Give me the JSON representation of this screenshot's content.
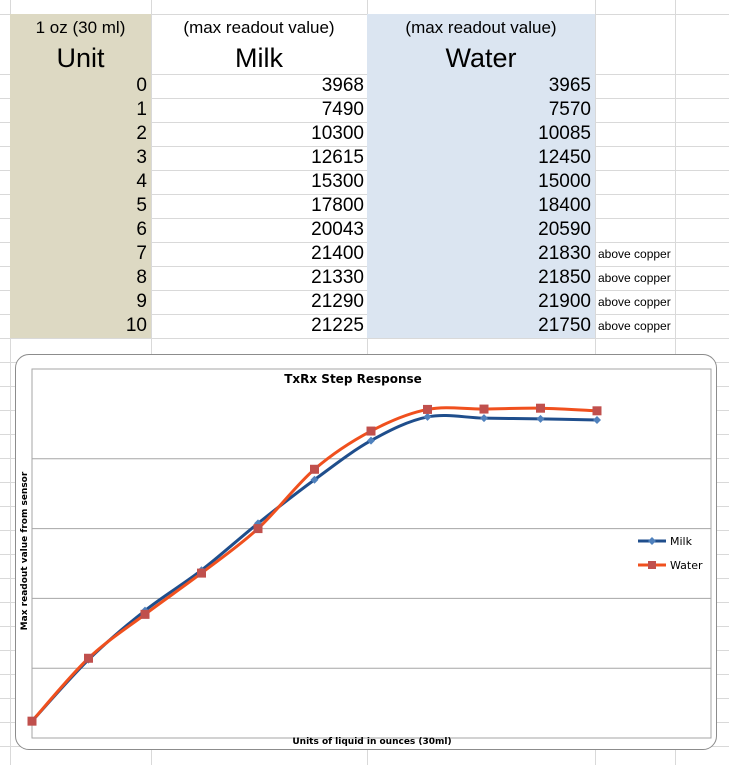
{
  "headers": {
    "unit_small": "1 oz (30 ml)",
    "unit_big": "Unit",
    "milk_small": "(max readout value)",
    "milk_big": "Milk",
    "water_small": "(max readout value)",
    "water_big": "Water"
  },
  "rows": [
    {
      "unit": "0",
      "milk": "3968",
      "water": "3965",
      "note": ""
    },
    {
      "unit": "1",
      "milk": "7490",
      "water": "7570",
      "note": ""
    },
    {
      "unit": "2",
      "milk": "10300",
      "water": "10085",
      "note": ""
    },
    {
      "unit": "3",
      "milk": "12615",
      "water": "12450",
      "note": ""
    },
    {
      "unit": "4",
      "milk": "15300",
      "water": "15000",
      "note": ""
    },
    {
      "unit": "5",
      "milk": "17800",
      "water": "18400",
      "note": ""
    },
    {
      "unit": "6",
      "milk": "20043",
      "water": "20590",
      "note": ""
    },
    {
      "unit": "7",
      "milk": "21400",
      "water": "21830",
      "note": "above copper"
    },
    {
      "unit": "8",
      "milk": "21330",
      "water": "21850",
      "note": "above copper"
    },
    {
      "unit": "9",
      "milk": "21290",
      "water": "21900",
      "note": "above copper"
    },
    {
      "unit": "10",
      "milk": "21225",
      "water": "21750",
      "note": "above copper"
    }
  ],
  "colors": {
    "unit_fill": "#ddd9c3",
    "water_fill": "#dbe5f1",
    "milk_series": "#1f4e8c",
    "milk_marker": "#4f81bd",
    "water_series": "#f0501e",
    "water_marker": "#c0504d"
  },
  "chart_data": {
    "type": "line",
    "title": "TxRx Step Response",
    "xlabel": "Units of liquid in ounces (30ml)",
    "ylabel": "Max readout value from sensor",
    "x": [
      0,
      1,
      2,
      3,
      4,
      5,
      6,
      7,
      8,
      9,
      10
    ],
    "series": [
      {
        "name": "Milk",
        "values": [
          3968,
          7490,
          10300,
          12615,
          15300,
          17800,
          20043,
          21400,
          21330,
          21290,
          21225
        ]
      },
      {
        "name": "Water",
        "values": [
          3965,
          7570,
          10085,
          12450,
          15000,
          18400,
          20590,
          21830,
          21850,
          21900,
          21750
        ]
      }
    ],
    "ylim": [
      3000,
      23000
    ],
    "grid": true,
    "legend_placement": "right",
    "smooth": true
  }
}
